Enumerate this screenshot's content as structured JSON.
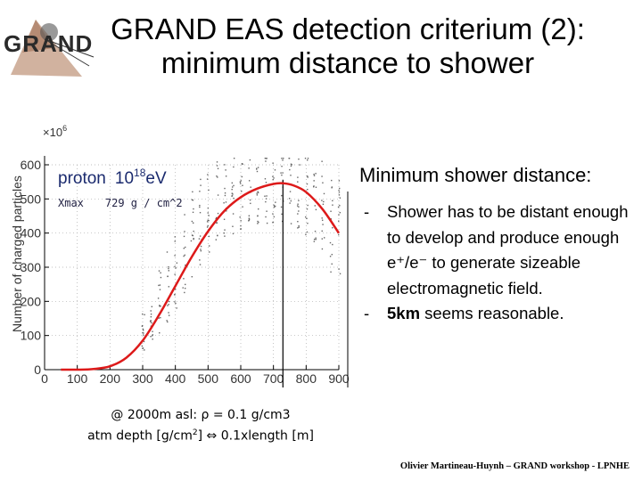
{
  "logo": {
    "text": "GRAND"
  },
  "title": {
    "line1": "GRAND EAS detection criterium (2):",
    "line2": "minimum distance to shower"
  },
  "chart_data": {
    "type": "scatter",
    "ylabel": "Number of charged particles",
    "ymultiplier": "×10",
    "ymultiplier_exp": "6",
    "xlim": [
      0,
      900
    ],
    "ylim": [
      0,
      600
    ],
    "xticks": [
      0,
      100,
      200,
      300,
      400,
      500,
      600,
      700,
      800,
      900
    ],
    "yticks": [
      0,
      100,
      200,
      300,
      400,
      500,
      600
    ],
    "legend": {
      "particle": "proton",
      "energy_base": "10",
      "energy_exp": "18",
      "energy_unit": "eV",
      "xmax_label": "Xmax",
      "xmax_value": "729 g / cm^2"
    },
    "xmax_line": 729,
    "fit_curve": {
      "x": [
        50,
        100,
        150,
        200,
        250,
        300,
        350,
        400,
        450,
        500,
        550,
        600,
        650,
        700,
        729,
        760,
        800,
        850,
        900
      ],
      "y": [
        0,
        0,
        2,
        10,
        35,
        85,
        160,
        245,
        330,
        405,
        465,
        505,
        530,
        544,
        546,
        540,
        520,
        470,
        400
      ]
    },
    "scatter_columns": [
      {
        "x": 300,
        "ymin": 50,
        "ymax": 170
      },
      {
        "x": 325,
        "ymin": 80,
        "ymax": 220
      },
      {
        "x": 350,
        "ymin": 100,
        "ymax": 300
      },
      {
        "x": 375,
        "ymin": 140,
        "ymax": 370
      },
      {
        "x": 400,
        "ymin": 180,
        "ymax": 430
      },
      {
        "x": 425,
        "ymin": 220,
        "ymax": 480
      },
      {
        "x": 450,
        "ymin": 260,
        "ymax": 530
      },
      {
        "x": 475,
        "ymin": 300,
        "ymax": 570
      },
      {
        "x": 500,
        "ymin": 330,
        "ymax": 600
      },
      {
        "x": 525,
        "ymin": 360,
        "ymax": 620
      },
      {
        "x": 550,
        "ymin": 380,
        "ymax": 630
      },
      {
        "x": 575,
        "ymin": 400,
        "ymax": 640
      },
      {
        "x": 600,
        "ymin": 410,
        "ymax": 640
      },
      {
        "x": 625,
        "ymin": 420,
        "ymax": 640
      },
      {
        "x": 650,
        "ymin": 430,
        "ymax": 640
      },
      {
        "x": 675,
        "ymin": 430,
        "ymax": 640
      },
      {
        "x": 700,
        "ymin": 430,
        "ymax": 640
      },
      {
        "x": 725,
        "ymin": 430,
        "ymax": 640
      },
      {
        "x": 750,
        "ymin": 420,
        "ymax": 640
      },
      {
        "x": 775,
        "ymin": 400,
        "ymax": 640
      },
      {
        "x": 800,
        "ymin": 380,
        "ymax": 640
      },
      {
        "x": 825,
        "ymin": 350,
        "ymax": 630
      },
      {
        "x": 850,
        "ymin": 320,
        "ymax": 620
      },
      {
        "x": 875,
        "ymin": 280,
        "ymax": 600
      },
      {
        "x": 900,
        "ymin": 250,
        "ymax": 580
      }
    ]
  },
  "right": {
    "heading": "Minimum shower distance:",
    "bullets": [
      {
        "dash": "-",
        "text": "Shower has to be distant enough to develop and produce enough e⁺/e⁻ to generate sizeable electromagnetic field."
      },
      {
        "dash": "-",
        "bold": "5km",
        "text": " seems reasonable."
      }
    ]
  },
  "note": {
    "line1": "@ 2000m asl: ρ = 0.1 g/cm3",
    "line2_pre": "atm depth [g/cm",
    "line2_sup": "2",
    "line2_post": "] ⇔  0.1xlength [m]"
  },
  "footer": "Olivier Martineau-Huynh – GRAND workshop - LPNHE",
  "colors": {
    "fit": "#dd1a1a",
    "legend_text": "#1a2a6e",
    "xmax_text": "#222244"
  }
}
